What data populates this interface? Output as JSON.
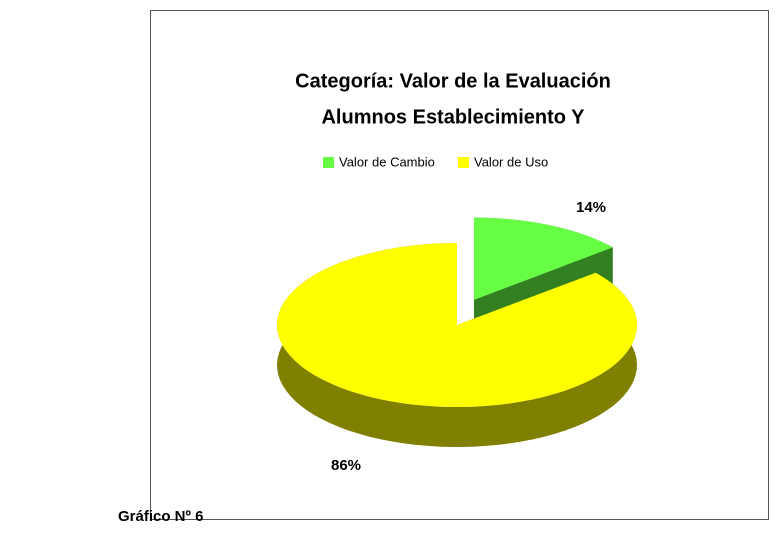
{
  "caption": "Gráfico Nº 6",
  "chart_data": {
    "type": "pie",
    "title": [
      "Categoría: Valor de la Evaluación",
      "Alumnos  Establecimiento Y"
    ],
    "categories": [
      "Valor de Cambio",
      "Valor de Uso"
    ],
    "values": [
      14,
      86
    ],
    "value_labels": [
      "14%",
      "86%"
    ],
    "colors": [
      "#66ff44",
      "#ffff00"
    ],
    "legend": "top"
  }
}
